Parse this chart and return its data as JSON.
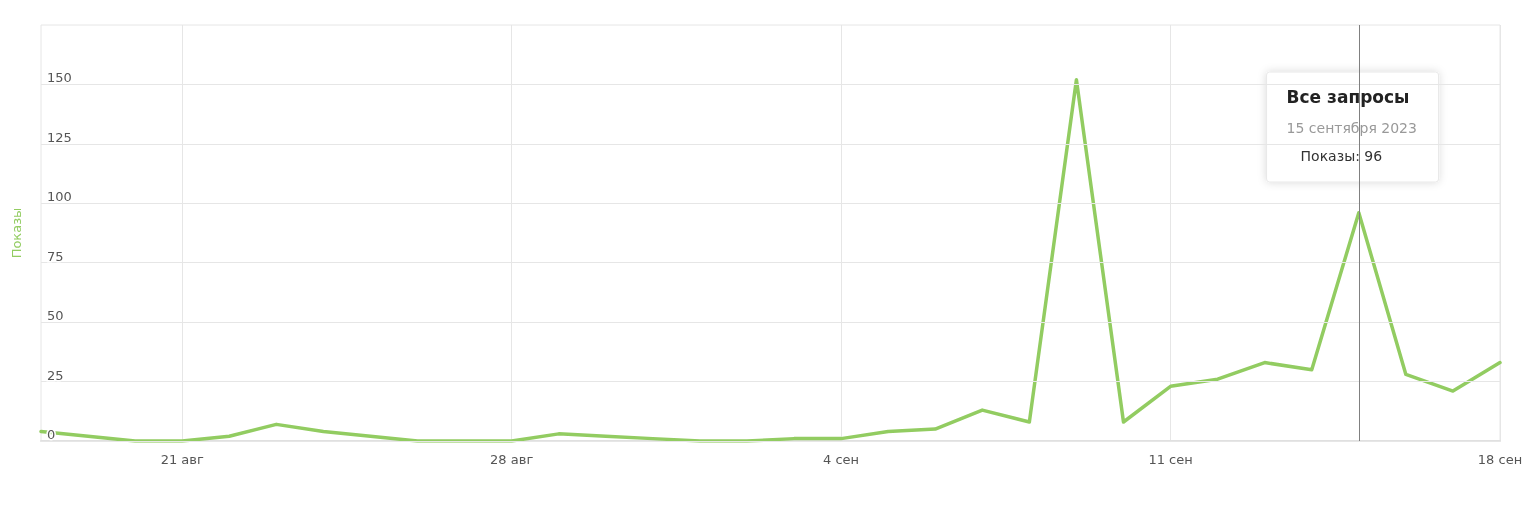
{
  "chart_data": {
    "type": "line",
    "ylabel": "Показы",
    "x": [
      "2023-08-18",
      "2023-08-19",
      "2023-08-20",
      "2023-08-21",
      "2023-08-22",
      "2023-08-23",
      "2023-08-24",
      "2023-08-25",
      "2023-08-26",
      "2023-08-27",
      "2023-08-28",
      "2023-08-29",
      "2023-08-30",
      "2023-08-31",
      "2023-09-01",
      "2023-09-02",
      "2023-09-03",
      "2023-09-04",
      "2023-09-05",
      "2023-09-06",
      "2023-09-07",
      "2023-09-08",
      "2023-09-09",
      "2023-09-10",
      "2023-09-11",
      "2023-09-12",
      "2023-09-13",
      "2023-09-14",
      "2023-09-15",
      "2023-09-16",
      "2023-09-17",
      "2023-09-18"
    ],
    "series": [
      {
        "color": "#92cc61",
        "values": [
          4,
          2,
          0,
          0,
          2,
          7,
          4,
          2,
          0,
          0,
          0,
          3,
          2,
          1,
          0,
          0,
          1,
          1,
          4,
          5,
          13,
          8,
          152,
          8,
          23,
          26,
          33,
          30,
          96,
          28,
          21,
          33
        ]
      }
    ],
    "xlim": [
      "2023-08-18",
      "2023-09-18"
    ],
    "xticks": [
      {
        "value": "2023-08-21",
        "label": "21 авг"
      },
      {
        "value": "2023-08-28",
        "label": "28 авг"
      },
      {
        "value": "2023-09-04",
        "label": "4 сен"
      },
      {
        "value": "2023-09-11",
        "label": "11 сен"
      },
      {
        "value": "2023-09-18",
        "label": "18 сен"
      }
    ],
    "ylim": [
      0,
      175
    ],
    "yticks": [
      0,
      25,
      50,
      75,
      100,
      125,
      150
    ],
    "ref_lines": [
      {
        "axis": "x",
        "value": "2023-09-15",
        "color": "#808080"
      }
    ],
    "annotations": [
      "Все запросы",
      "15 сентября 2023",
      "Показы: 96"
    ],
    "grid": true,
    "marker": "none",
    "line_style": "solid"
  }
}
